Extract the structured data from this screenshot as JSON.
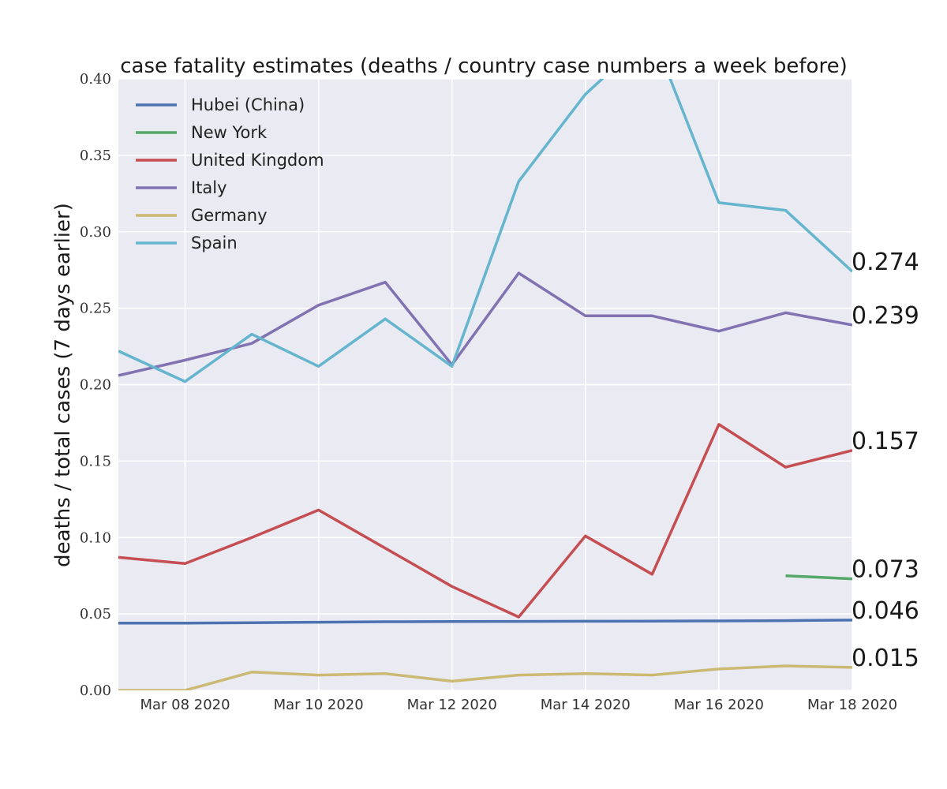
{
  "chart_data": {
    "type": "line",
    "title": "case fatality estimates (deaths / country case numbers a week before)",
    "xlabel": "",
    "ylabel": "deaths / total cases (7 days earlier)",
    "x": [
      "2020-03-07",
      "2020-03-08",
      "2020-03-09",
      "2020-03-10",
      "2020-03-11",
      "2020-03-12",
      "2020-03-13",
      "2020-03-14",
      "2020-03-15",
      "2020-03-16",
      "2020-03-17",
      "2020-03-18"
    ],
    "x_ticks": [
      "Mar 08 2020",
      "Mar 10 2020",
      "Mar 12 2020",
      "Mar 14 2020",
      "Mar 16 2020",
      "Mar 18 2020"
    ],
    "x_tick_dates": [
      "2020-03-08",
      "2020-03-10",
      "2020-03-12",
      "2020-03-14",
      "2020-03-16",
      "2020-03-18"
    ],
    "y_ticks": [
      "0.00",
      "0.05",
      "0.10",
      "0.15",
      "0.20",
      "0.25",
      "0.30",
      "0.35",
      "0.40"
    ],
    "ylim": [
      0,
      0.4
    ],
    "xlim": [
      "2020-03-07",
      "2020-03-18"
    ],
    "grid": true,
    "legend_position": "top-left",
    "series": [
      {
        "name": "Hubei (China)",
        "color": "#4c72b0",
        "values": [
          0.044,
          0.044,
          0.0443,
          0.0446,
          0.0449,
          0.045,
          0.0451,
          0.0452,
          0.0453,
          0.0454,
          0.0456,
          0.046
        ]
      },
      {
        "name": "New York",
        "color": "#55a868",
        "values": [
          null,
          null,
          null,
          null,
          null,
          null,
          null,
          null,
          null,
          null,
          0.075,
          0.073
        ]
      },
      {
        "name": "United Kingdom",
        "color": "#c44e52",
        "values": [
          0.087,
          0.083,
          0.1,
          0.118,
          0.093,
          0.068,
          0.048,
          0.101,
          0.076,
          0.174,
          0.146,
          0.157
        ]
      },
      {
        "name": "Italy",
        "color": "#8172b2",
        "values": [
          0.206,
          0.216,
          0.227,
          0.252,
          0.267,
          0.213,
          0.273,
          0.245,
          0.245,
          0.235,
          0.247,
          0.239
        ]
      },
      {
        "name": "Germany",
        "color": "#ccb974",
        "values": [
          0.0,
          0.0,
          0.012,
          0.01,
          0.011,
          0.006,
          0.01,
          0.011,
          0.01,
          0.014,
          0.016,
          0.015
        ]
      },
      {
        "name": "Spain",
        "color": "#64b5cd",
        "values": [
          0.222,
          0.202,
          0.233,
          0.212,
          0.243,
          0.212,
          0.333,
          0.39,
          0.43,
          0.319,
          0.314,
          0.274
        ]
      }
    ],
    "end_labels": [
      "0.274",
      "0.239",
      "0.157",
      "0.073",
      "0.046",
      "0.015"
    ]
  },
  "style": {
    "plot_background": "#eaeaf2",
    "grid_color": "#ffffff"
  }
}
